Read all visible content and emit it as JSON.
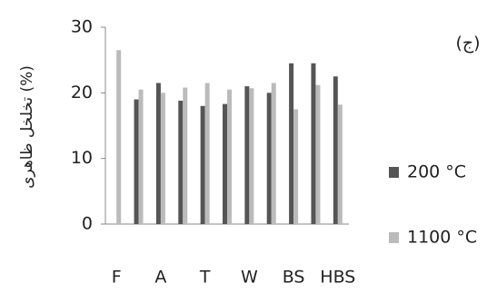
{
  "chart_data": {
    "type": "bar",
    "y_label": "تخلخل ظاهری (%)",
    "annotation": "(ج)",
    "categories": [
      "F",
      null,
      "A",
      null,
      "T",
      null,
      "W",
      null,
      "BS",
      null,
      "HBS"
    ],
    "series": [
      {
        "name": "200 °C",
        "color": "#555555",
        "values": [
          null,
          19,
          21.5,
          18.8,
          18,
          18.3,
          21,
          20,
          24.5,
          24.5,
          22.5
        ]
      },
      {
        "name": "1100 °C",
        "color": "#bbbbbb",
        "values": [
          26.5,
          20.5,
          20,
          20.8,
          21.5,
          20.5,
          20.7,
          21.5,
          17.5,
          21.2,
          18.2
        ]
      }
    ],
    "ylim": [
      0,
      30
    ],
    "yticks": [
      0,
      10,
      20,
      30
    ],
    "grid": false,
    "legend": "right"
  }
}
